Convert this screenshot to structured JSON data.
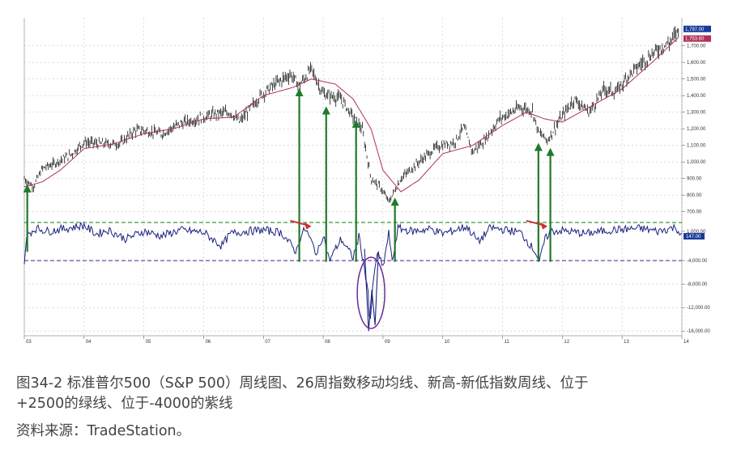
{
  "caption": {
    "line1": "图34-2   标准普尔500（S&P 500）周线图、26周指数移动均线、新高-新低指数周线、位于",
    "line2": "+2500的绿线、位于-4000的紫线",
    "source": "资料来源：TradeStation。"
  },
  "chart_data": {
    "type": "line",
    "x_tick_labels": [
      "03",
      "04",
      "05",
      "06",
      "07",
      "08",
      "09",
      "10",
      "11",
      "12",
      "13",
      "14"
    ],
    "x_range": [
      2003.0,
      2014.0
    ],
    "price_panel": {
      "y_ticks": [
        1700,
        1600,
        1500,
        1400,
        1300,
        1200,
        1100,
        1000,
        900,
        800,
        700
      ],
      "y_tick_labels": [
        "1,700.00",
        "1,600.00",
        "1,500.00",
        "1,400.00",
        "1,300.00",
        "1,200.00",
        "1,100.00",
        "1,000.00",
        "900.00",
        "800.00",
        "700.00"
      ],
      "ylim": [
        640,
        1830
      ],
      "last_price_labels": [
        "1,797.00",
        "1,753.60"
      ],
      "series": [
        {
          "kind": "price-bars",
          "x": [
            2003.0,
            2003.15,
            2003.3,
            2003.5,
            2003.8,
            2004.0,
            2004.25,
            2004.6,
            2004.85,
            2005.0,
            2005.3,
            2005.6,
            2005.9,
            2006.2,
            2006.45,
            2006.6,
            2006.95,
            2007.2,
            2007.45,
            2007.6,
            2007.8,
            2008.0,
            2008.3,
            2008.5,
            2008.65,
            2008.8,
            2008.95,
            2009.1,
            2009.3,
            2009.6,
            2009.9,
            2010.2,
            2010.35,
            2010.5,
            2010.7,
            2010.95,
            2011.3,
            2011.5,
            2011.6,
            2011.75,
            2011.95,
            2012.2,
            2012.45,
            2012.7,
            2012.9,
            2013.1,
            2013.4,
            2013.6,
            2013.8,
            2013.95
          ],
          "values": [
            900,
            850,
            960,
            990,
            1050,
            1120,
            1110,
            1110,
            1190,
            1190,
            1170,
            1230,
            1260,
            1290,
            1300,
            1240,
            1400,
            1470,
            1530,
            1460,
            1560,
            1410,
            1380,
            1270,
            1200,
            900,
            850,
            760,
            900,
            1000,
            1090,
            1120,
            1210,
            1060,
            1130,
            1260,
            1330,
            1310,
            1180,
            1130,
            1250,
            1380,
            1300,
            1440,
            1420,
            1520,
            1620,
            1680,
            1720,
            1797
          ]
        },
        {
          "kind": "26-week-ema",
          "x": [
            2003.0,
            2003.3,
            2003.6,
            2004.0,
            2004.5,
            2005.0,
            2005.5,
            2006.0,
            2006.5,
            2007.0,
            2007.5,
            2007.8,
            2008.2,
            2008.5,
            2008.8,
            2009.0,
            2009.3,
            2009.6,
            2010.0,
            2010.5,
            2011.0,
            2011.4,
            2011.7,
            2012.0,
            2012.5,
            2013.0,
            2013.5,
            2013.95
          ],
          "values": [
            850,
            880,
            950,
            1080,
            1110,
            1170,
            1200,
            1260,
            1270,
            1400,
            1450,
            1500,
            1470,
            1380,
            1200,
            950,
            820,
            890,
            1050,
            1100,
            1220,
            1300,
            1260,
            1240,
            1340,
            1440,
            1600,
            1753
          ]
        }
      ]
    },
    "indicator_panel": {
      "name": "NH-NL weekly",
      "y_tick_labels": [
        "1,000.00",
        "-4,000.00",
        "-8,000.00",
        "-12,000.00",
        "-16,000.00"
      ],
      "y_ticks": [
        1000,
        -4000,
        -8000,
        -12000,
        -16000
      ],
      "ylim": [
        -16800,
        3600
      ],
      "green_line": 2500,
      "purple_line": -4000,
      "last_value_label": "147.00",
      "series": [
        {
          "kind": "nh-nl",
          "x": [
            2003.0,
            2003.05,
            2003.2,
            2003.4,
            2003.7,
            2004.0,
            2004.2,
            2004.4,
            2004.7,
            2005.0,
            2005.3,
            2005.6,
            2006.0,
            2006.3,
            2006.45,
            2006.7,
            2007.0,
            2007.3,
            2007.55,
            2007.6,
            2007.7,
            2007.9,
            2008.0,
            2008.1,
            2008.3,
            2008.5,
            2008.6,
            2008.75,
            2008.78,
            2008.82,
            2008.9,
            2009.0,
            2009.1,
            2009.15,
            2009.25,
            2009.5,
            2009.8,
            2010.0,
            2010.4,
            2010.6,
            2010.8,
            2011.0,
            2011.3,
            2011.55,
            2011.62,
            2011.7,
            2011.8,
            2012.0,
            2012.4,
            2012.8,
            2013.0,
            2013.3,
            2013.6,
            2013.9,
            2014.0
          ],
          "values": [
            -4000,
            500,
            1500,
            1000,
            1500,
            2000,
            500,
            1200,
            -300,
            1000,
            200,
            1200,
            800,
            -1500,
            600,
            1000,
            1200,
            800,
            -2500,
            -500,
            1500,
            -3000,
            600,
            -4000,
            -300,
            -3500,
            200,
            -9000,
            -16000,
            -9500,
            -2500,
            -5200,
            900,
            -4500,
            1500,
            1000,
            1400,
            600,
            1800,
            -800,
            1600,
            1300,
            800,
            -2500,
            -4300,
            -600,
            1000,
            1100,
            600,
            1200,
            1300,
            1500,
            1000,
            1700,
            147
          ]
        }
      ]
    },
    "annotations": {
      "green_arrows_x": [
        2003.05,
        2007.6,
        2008.05,
        2008.55,
        2009.2,
        2011.6,
        2011.8
      ],
      "red_arrows_x": [
        2007.45,
        2011.4
      ],
      "purple_ellipse_x": 2008.8
    },
    "grid": true
  }
}
